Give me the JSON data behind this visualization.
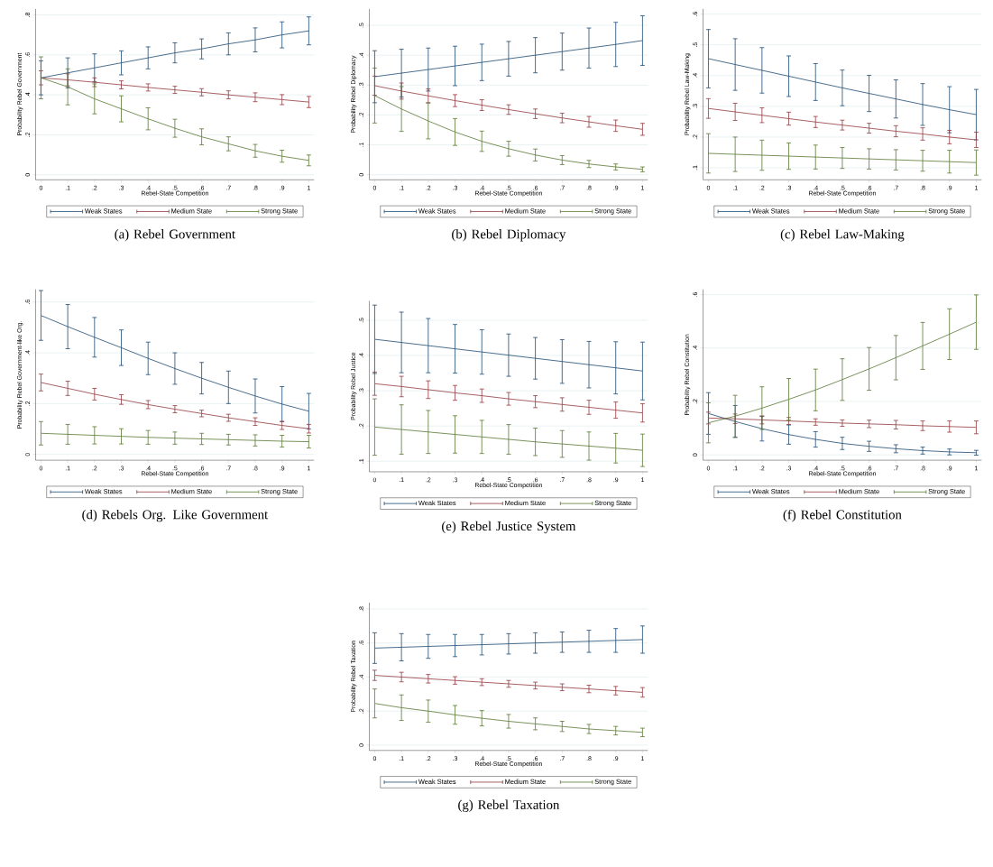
{
  "chart_data": [
    {
      "type": "line",
      "title": "(a) Rebel Government",
      "xlabel": "Rebel-State Competition",
      "ylabel": "Probability Rebel Government",
      "x": [
        0,
        0.1,
        0.2,
        0.3,
        0.4,
        0.5,
        0.6,
        0.7,
        0.8,
        0.9,
        1
      ],
      "xlim": [
        -0.02,
        1.02
      ],
      "ylim": [
        -0.025,
        0.83
      ],
      "xticks": [
        0,
        {
          "value": 0.1,
          "label": ".1"
        },
        {
          "value": 0.2,
          "label": ".2"
        },
        {
          "value": 0.3,
          "label": ".3"
        },
        {
          "value": 0.4,
          "label": ".4"
        },
        {
          "value": 0.5,
          "label": ".5"
        },
        {
          "value": 0.6,
          "label": ".6"
        },
        {
          "value": 0.7,
          "label": ".7"
        },
        {
          "value": 0.8,
          "label": ".8"
        },
        {
          "value": 0.9,
          "label": ".9"
        },
        1
      ],
      "yticks": [
        0,
        {
          "value": 0.2,
          "label": ".2"
        },
        {
          "value": 0.4,
          "label": ".4"
        },
        {
          "value": 0.6,
          "label": ".6"
        },
        {
          "value": 0.8,
          "label": ".8"
        }
      ],
      "grid": "y",
      "legend": "bottom",
      "series": [
        {
          "name": "Weak States",
          "color": "#1a476f",
          "values": [
            0.485,
            0.51,
            0.535,
            0.56,
            0.585,
            0.61,
            0.63,
            0.655,
            0.675,
            0.7,
            0.72
          ],
          "errors": [
            0.085,
            0.075,
            0.07,
            0.06,
            0.055,
            0.05,
            0.05,
            0.055,
            0.06,
            0.065,
            0.07
          ]
        },
        {
          "name": "Medium State",
          "color": "#90353b",
          "values": [
            0.485,
            0.475,
            0.463,
            0.45,
            0.437,
            0.425,
            0.413,
            0.4,
            0.388,
            0.376,
            0.364
          ],
          "errors": [
            0.035,
            0.03,
            0.022,
            0.02,
            0.018,
            0.018,
            0.018,
            0.02,
            0.022,
            0.025,
            0.028
          ]
        },
        {
          "name": "Strong State",
          "color": "#55752f",
          "values": [
            0.485,
            0.44,
            0.38,
            0.33,
            0.28,
            0.233,
            0.19,
            0.155,
            0.12,
            0.093,
            0.072
          ],
          "errors": [
            0.105,
            0.09,
            0.075,
            0.065,
            0.055,
            0.045,
            0.04,
            0.035,
            0.032,
            0.03,
            0.027
          ]
        }
      ]
    },
    {
      "type": "line",
      "title": "(b) Rebel Diplomacy",
      "xlabel": "Rebel-State Competition",
      "ylabel": "Probability Rebel Diplomacy",
      "x": [
        0,
        0.1,
        0.2,
        0.3,
        0.4,
        0.5,
        0.6,
        0.7,
        0.8,
        0.9,
        1
      ],
      "xlim": [
        -0.02,
        1.02
      ],
      "ylim": [
        -0.017,
        0.555
      ],
      "xticks": [
        0,
        {
          "value": 0.1,
          "label": ".1"
        },
        {
          "value": 0.2,
          "label": ".2"
        },
        {
          "value": 0.3,
          "label": ".3"
        },
        {
          "value": 0.4,
          "label": ".4"
        },
        {
          "value": 0.5,
          "label": ".5"
        },
        {
          "value": 0.6,
          "label": ".6"
        },
        {
          "value": 0.7,
          "label": ".7"
        },
        {
          "value": 0.8,
          "label": ".8"
        },
        {
          "value": 0.9,
          "label": ".9"
        },
        1
      ],
      "yticks": [
        0,
        {
          "value": 0.1,
          "label": ".1"
        },
        {
          "value": 0.2,
          "label": ".2"
        },
        {
          "value": 0.3,
          "label": ".3"
        },
        {
          "value": 0.4,
          "label": ".4"
        },
        {
          "value": 0.5,
          "label": ".5"
        }
      ],
      "grid": "y",
      "legend": "bottom",
      "series": [
        {
          "name": "Weak States",
          "color": "#1a476f",
          "values": [
            0.328,
            0.34,
            0.352,
            0.364,
            0.376,
            0.388,
            0.4,
            0.412,
            0.424,
            0.436,
            0.449
          ],
          "errors": [
            0.087,
            0.08,
            0.072,
            0.066,
            0.061,
            0.058,
            0.059,
            0.062,
            0.067,
            0.074,
            0.083
          ]
        },
        {
          "name": "Medium State",
          "color": "#90353b",
          "values": [
            0.298,
            0.28,
            0.264,
            0.248,
            0.233,
            0.218,
            0.204,
            0.19,
            0.177,
            0.164,
            0.152
          ],
          "errors": [
            0.032,
            0.027,
            0.023,
            0.02,
            0.018,
            0.016,
            0.016,
            0.016,
            0.018,
            0.019,
            0.02
          ]
        },
        {
          "name": "Strong State",
          "color": "#55752f",
          "values": [
            0.265,
            0.22,
            0.18,
            0.143,
            0.112,
            0.087,
            0.066,
            0.049,
            0.036,
            0.026,
            0.018
          ],
          "errors": [
            0.092,
            0.075,
            0.06,
            0.045,
            0.034,
            0.025,
            0.02,
            0.015,
            0.012,
            0.01,
            0.008
          ]
        }
      ]
    },
    {
      "type": "line",
      "title": "(c) Rebel Law-Making",
      "xlabel": "Rebel-State Competition",
      "ylabel": "Probability Rebel Law-Making",
      "x": [
        0,
        0.1,
        0.2,
        0.3,
        0.4,
        0.5,
        0.6,
        0.7,
        0.8,
        0.9,
        1
      ],
      "xlim": [
        -0.02,
        1.02
      ],
      "ylim": [
        0.061,
        0.617
      ],
      "xticks": [
        0,
        {
          "value": 0.1,
          "label": ".1"
        },
        {
          "value": 0.2,
          "label": ".2"
        },
        {
          "value": 0.3,
          "label": ".3"
        },
        {
          "value": 0.4,
          "label": ".4"
        },
        {
          "value": 0.5,
          "label": ".5"
        },
        {
          "value": 0.6,
          "label": ".6"
        },
        {
          "value": 0.7,
          "label": ".7"
        },
        {
          "value": 0.8,
          "label": ".8"
        },
        {
          "value": 0.9,
          "label": ".9"
        },
        1
      ],
      "yticks": [
        {
          "value": 0.1,
          "label": ".1"
        },
        {
          "value": 0.2,
          "label": ".2"
        },
        {
          "value": 0.3,
          "label": ".3"
        },
        {
          "value": 0.4,
          "label": ".4"
        },
        {
          "value": 0.5,
          "label": ".5"
        },
        {
          "value": 0.6,
          "label": ".6"
        }
      ],
      "grid": "y",
      "legend": "bottom",
      "series": [
        {
          "name": "Weak States",
          "color": "#1a476f",
          "values": [
            0.455,
            0.436,
            0.417,
            0.398,
            0.379,
            0.36,
            0.342,
            0.324,
            0.306,
            0.289,
            0.273
          ],
          "errors": [
            0.095,
            0.084,
            0.074,
            0.066,
            0.06,
            0.058,
            0.059,
            0.062,
            0.068,
            0.075,
            0.082
          ]
        },
        {
          "name": "Medium State",
          "color": "#90353b",
          "values": [
            0.293,
            0.282,
            0.271,
            0.26,
            0.249,
            0.239,
            0.229,
            0.219,
            0.21,
            0.2,
            0.191
          ],
          "errors": [
            0.032,
            0.028,
            0.024,
            0.021,
            0.018,
            0.016,
            0.016,
            0.018,
            0.02,
            0.022,
            0.025
          ]
        },
        {
          "name": "Strong State",
          "color": "#55752f",
          "values": [
            0.147,
            0.144,
            0.141,
            0.138,
            0.135,
            0.132,
            0.129,
            0.126,
            0.123,
            0.12,
            0.117
          ],
          "errors": [
            0.064,
            0.056,
            0.049,
            0.043,
            0.039,
            0.034,
            0.033,
            0.033,
            0.034,
            0.037,
            0.041
          ]
        }
      ]
    },
    {
      "type": "line",
      "title": "(d) Rebels Org. Like Government",
      "xlabel": "Rebel-State Competition",
      "ylabel": "Probability Rebel Government-like Org.",
      "x": [
        0,
        0.1,
        0.2,
        0.3,
        0.4,
        0.5,
        0.6,
        0.7,
        0.8,
        0.9,
        1
      ],
      "xlim": [
        -0.02,
        1.02
      ],
      "ylim": [
        -0.023,
        0.65
      ],
      "xticks": [
        0,
        {
          "value": 0.1,
          "label": ".1"
        },
        {
          "value": 0.2,
          "label": ".2"
        },
        {
          "value": 0.3,
          "label": ".3"
        },
        {
          "value": 0.4,
          "label": ".4"
        },
        {
          "value": 0.5,
          "label": ".5"
        },
        {
          "value": 0.6,
          "label": ".6"
        },
        {
          "value": 0.7,
          "label": ".7"
        },
        {
          "value": 0.8,
          "label": ".8"
        },
        {
          "value": 0.9,
          "label": ".9"
        },
        1
      ],
      "yticks": [
        0,
        {
          "value": 0.2,
          "label": ".2"
        },
        {
          "value": 0.4,
          "label": ".4"
        },
        {
          "value": 0.6,
          "label": ".6"
        }
      ],
      "grid": "y",
      "legend": "bottom",
      "series": [
        {
          "name": "Weak States",
          "color": "#1a476f",
          "values": [
            0.547,
            0.503,
            0.461,
            0.42,
            0.378,
            0.338,
            0.3,
            0.264,
            0.23,
            0.198,
            0.17
          ],
          "errors": [
            0.098,
            0.087,
            0.078,
            0.07,
            0.064,
            0.062,
            0.062,
            0.064,
            0.067,
            0.069,
            0.07
          ]
        },
        {
          "name": "Medium State",
          "color": "#90353b",
          "values": [
            0.283,
            0.26,
            0.237,
            0.216,
            0.196,
            0.178,
            0.161,
            0.144,
            0.129,
            0.114,
            0.101
          ],
          "errors": [
            0.033,
            0.028,
            0.023,
            0.019,
            0.016,
            0.014,
            0.013,
            0.014,
            0.015,
            0.016,
            0.017
          ]
        },
        {
          "name": "Strong State",
          "color": "#55752f",
          "values": [
            0.083,
            0.079,
            0.075,
            0.071,
            0.067,
            0.064,
            0.061,
            0.058,
            0.055,
            0.052,
            0.05
          ],
          "errors": [
            0.046,
            0.039,
            0.034,
            0.03,
            0.027,
            0.024,
            0.022,
            0.021,
            0.022,
            0.023,
            0.025
          ]
        }
      ]
    },
    {
      "type": "line",
      "title": "(e) Rebel Justice System",
      "xlabel": "Rebel-State Competition",
      "ylabel": "Probability Rebel Justice",
      "x": [
        0,
        0.1,
        0.2,
        0.3,
        0.4,
        0.5,
        0.6,
        0.7,
        0.8,
        0.9,
        1
      ],
      "xlim": [
        -0.02,
        1.02
      ],
      "ylim": [
        0.07,
        0.555
      ],
      "xticks": [
        0,
        {
          "value": 0.1,
          "label": ".1"
        },
        {
          "value": 0.2,
          "label": ".2"
        },
        {
          "value": 0.3,
          "label": ".3"
        },
        {
          "value": 0.4,
          "label": ".4"
        },
        {
          "value": 0.5,
          "label": ".5"
        },
        {
          "value": 0.6,
          "label": ".6"
        },
        {
          "value": 0.7,
          "label": ".7"
        },
        {
          "value": 0.8,
          "label": ".8"
        },
        {
          "value": 0.9,
          "label": ".9"
        },
        1
      ],
      "yticks": [
        {
          "value": 0.1,
          "label": ".1"
        },
        {
          "value": 0.2,
          "label": ".2"
        },
        {
          "value": 0.3,
          "label": ".3"
        },
        {
          "value": 0.4,
          "label": ".4"
        },
        {
          "value": 0.5,
          "label": ".5"
        }
      ],
      "grid": "y",
      "legend": "bottom",
      "series": [
        {
          "name": "Weak States",
          "color": "#1a476f",
          "values": [
            0.446,
            0.437,
            0.428,
            0.419,
            0.41,
            0.401,
            0.392,
            0.383,
            0.374,
            0.365,
            0.356
          ],
          "errors": [
            0.097,
            0.086,
            0.077,
            0.069,
            0.063,
            0.06,
            0.059,
            0.062,
            0.066,
            0.074,
            0.082
          ]
        },
        {
          "name": "Medium State",
          "color": "#90353b",
          "values": [
            0.32,
            0.312,
            0.303,
            0.294,
            0.286,
            0.277,
            0.269,
            0.261,
            0.253,
            0.245,
            0.237
          ],
          "errors": [
            0.033,
            0.029,
            0.025,
            0.021,
            0.019,
            0.018,
            0.017,
            0.019,
            0.02,
            0.023,
            0.026
          ]
        },
        {
          "name": "Strong State",
          "color": "#55752f",
          "values": [
            0.197,
            0.19,
            0.183,
            0.176,
            0.169,
            0.162,
            0.155,
            0.149,
            0.143,
            0.137,
            0.131
          ],
          "errors": [
            0.08,
            0.07,
            0.061,
            0.053,
            0.047,
            0.042,
            0.039,
            0.038,
            0.04,
            0.042,
            0.046
          ]
        }
      ]
    },
    {
      "type": "line",
      "title": "(f) Rebel Constitution",
      "xlabel": "Rebel-State Competition",
      "ylabel": "Probability Rebel Constitution",
      "x": [
        0,
        0.1,
        0.2,
        0.3,
        0.4,
        0.5,
        0.6,
        0.7,
        0.8,
        0.9,
        1
      ],
      "xlim": [
        -0.02,
        1.02
      ],
      "ylim": [
        -0.02,
        0.62
      ],
      "xticks": [
        0,
        {
          "value": 0.1,
          "label": ".1"
        },
        {
          "value": 0.2,
          "label": ".2"
        },
        {
          "value": 0.3,
          "label": ".3"
        },
        {
          "value": 0.4,
          "label": ".4"
        },
        {
          "value": 0.5,
          "label": ".5"
        },
        {
          "value": 0.6,
          "label": ".6"
        },
        {
          "value": 0.7,
          "label": ".7"
        },
        {
          "value": 0.8,
          "label": ".8"
        },
        {
          "value": 0.9,
          "label": ".9"
        },
        1
      ],
      "yticks": [
        0,
        {
          "value": 0.2,
          "label": ".2"
        },
        {
          "value": 0.4,
          "label": ".4"
        },
        {
          "value": 0.6,
          "label": ".6"
        }
      ],
      "grid": "y",
      "legend": "bottom",
      "series": [
        {
          "name": "Weak States",
          "color": "#1a476f",
          "values": [
            0.155,
            0.125,
            0.098,
            0.076,
            0.058,
            0.043,
            0.032,
            0.023,
            0.016,
            0.011,
            0.008
          ],
          "errors": [
            0.078,
            0.06,
            0.046,
            0.036,
            0.029,
            0.023,
            0.019,
            0.015,
            0.013,
            0.011,
            0.009
          ]
        },
        {
          "name": "Medium State",
          "color": "#90353b",
          "values": [
            0.138,
            0.135,
            0.131,
            0.127,
            0.123,
            0.119,
            0.116,
            0.113,
            0.109,
            0.106,
            0.103
          ],
          "errors": [
            0.022,
            0.018,
            0.015,
            0.013,
            0.012,
            0.012,
            0.014,
            0.016,
            0.018,
            0.021,
            0.024
          ]
        },
        {
          "name": "Strong State",
          "color": "#55752f",
          "values": [
            0.12,
            0.145,
            0.175,
            0.208,
            0.243,
            0.282,
            0.322,
            0.364,
            0.408,
            0.452,
            0.497
          ],
          "errors": [
            0.075,
            0.078,
            0.08,
            0.078,
            0.078,
            0.078,
            0.08,
            0.083,
            0.088,
            0.095,
            0.102
          ]
        }
      ]
    },
    {
      "type": "line",
      "title": "(g) Rebel Taxation",
      "xlabel": "Rebel-State Competition",
      "ylabel": "Probability Rebel Taxation",
      "x": [
        0,
        0.1,
        0.2,
        0.3,
        0.4,
        0.5,
        0.6,
        0.7,
        0.8,
        0.9,
        1
      ],
      "xlim": [
        -0.02,
        1.02
      ],
      "ylim": [
        -0.031,
        0.837
      ],
      "xticks": [
        0,
        {
          "value": 0.1,
          "label": ".1"
        },
        {
          "value": 0.2,
          "label": ".2"
        },
        {
          "value": 0.3,
          "label": ".3"
        },
        {
          "value": 0.4,
          "label": ".4"
        },
        {
          "value": 0.5,
          "label": ".5"
        },
        {
          "value": 0.6,
          "label": ".6"
        },
        {
          "value": 0.7,
          "label": ".7"
        },
        {
          "value": 0.8,
          "label": ".8"
        },
        {
          "value": 0.9,
          "label": ".9"
        },
        1
      ],
      "yticks": [
        0,
        {
          "value": 0.2,
          "label": ".2"
        },
        {
          "value": 0.4,
          "label": ".4"
        },
        {
          "value": 0.6,
          "label": ".6"
        },
        {
          "value": 0.8,
          "label": ".8"
        }
      ],
      "grid": "y",
      "legend": "bottom",
      "series": [
        {
          "name": "Weak States",
          "color": "#1a476f",
          "values": [
            0.57,
            0.575,
            0.58,
            0.585,
            0.59,
            0.595,
            0.6,
            0.605,
            0.61,
            0.615,
            0.62
          ],
          "errors": [
            0.09,
            0.08,
            0.07,
            0.065,
            0.06,
            0.06,
            0.06,
            0.06,
            0.065,
            0.07,
            0.08
          ]
        },
        {
          "name": "Medium State",
          "color": "#90353b",
          "values": [
            0.41,
            0.4,
            0.39,
            0.38,
            0.37,
            0.36,
            0.35,
            0.34,
            0.33,
            0.32,
            0.31
          ],
          "errors": [
            0.03,
            0.028,
            0.025,
            0.022,
            0.02,
            0.02,
            0.02,
            0.02,
            0.022,
            0.025,
            0.028
          ]
        },
        {
          "name": "Strong State",
          "color": "#55752f",
          "values": [
            0.245,
            0.22,
            0.2,
            0.178,
            0.158,
            0.14,
            0.125,
            0.11,
            0.095,
            0.085,
            0.075
          ],
          "errors": [
            0.085,
            0.075,
            0.065,
            0.055,
            0.045,
            0.04,
            0.035,
            0.03,
            0.027,
            0.025,
            0.025
          ]
        }
      ]
    }
  ]
}
